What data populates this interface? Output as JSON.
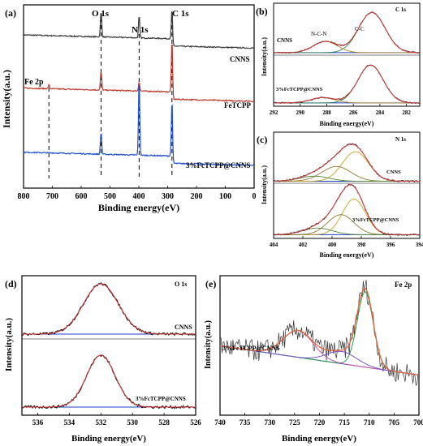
{
  "chart_data": [
    {
      "panel": "(a)",
      "type": "line",
      "xlabel": "Binding energy(eV)",
      "ylabel": "Intensity(a.u.)",
      "xlim": [
        800,
        0
      ],
      "xticks": [
        800,
        700,
        600,
        500,
        400,
        300,
        200,
        100,
        0
      ],
      "peaks": [
        {
          "label": "Fe 2p",
          "x": 712
        },
        {
          "label": "O 1s",
          "x": 531
        },
        {
          "label": "N 1s",
          "x": 399
        },
        {
          "label": "C 1s",
          "x": 285
        }
      ],
      "series": [
        {
          "name": "CNNS",
          "color": "#3a3a3a",
          "base": 0.82,
          "peaks": [
            {
              "x": 531,
              "h": 0.14
            },
            {
              "x": 399,
              "h": 0.12
            },
            {
              "x": 285,
              "h": 0.16
            }
          ]
        },
        {
          "name": "FeTCPP",
          "color": "#c0392b",
          "base": 0.53,
          "peaks": [
            {
              "x": 712,
              "h": 0.02
            },
            {
              "x": 531,
              "h": 0.1
            },
            {
              "x": 399,
              "h": 0.05
            },
            {
              "x": 285,
              "h": 0.28
            }
          ]
        },
        {
          "name": "3%FcTCPP@CNNS",
          "color": "#1f4fd1",
          "base": 0.18,
          "peaks": [
            {
              "x": 531,
              "h": 0.12
            },
            {
              "x": 399,
              "h": 0.42
            },
            {
              "x": 285,
              "h": 0.3
            }
          ]
        }
      ]
    },
    {
      "panel": "(b)",
      "type": "line",
      "title": "C 1s",
      "xlabel": "Binding energy(eV)",
      "ylabel": "Intensity(a.u.)",
      "xlim": [
        292,
        281
      ],
      "xticks": [
        292,
        290,
        288,
        286,
        284,
        282
      ],
      "annotations": [
        "N-C-N",
        "C-C"
      ],
      "series": [
        {
          "name": "CNNS",
          "peaks": [
            {
              "x": 284.6,
              "h": 0.9,
              "w": 1.0
            },
            {
              "x": 288.1,
              "h": 0.25,
              "w": 0.9
            }
          ]
        },
        {
          "name": "3%FcTCPP@CNNS",
          "peaks": [
            {
              "x": 284.7,
              "h": 0.85,
              "w": 0.95
            },
            {
              "x": 288.3,
              "h": 0.12,
              "w": 0.9
            }
          ]
        }
      ]
    },
    {
      "panel": "(c)",
      "type": "line",
      "title": "N 1s",
      "xlabel": "Binding energy(eV)",
      "ylabel": "Intensity(a.u.)",
      "xlim": [
        404,
        394
      ],
      "xticks": [
        404,
        402,
        400,
        398,
        396,
        394
      ],
      "series": [
        {
          "name": "CNNS",
          "peaks": [
            {
              "x": 398.4,
              "h": 0.7,
              "w": 0.9
            },
            {
              "x": 399.7,
              "h": 0.35,
              "w": 1.0
            },
            {
              "x": 401.2,
              "h": 0.12,
              "w": 1.0
            }
          ]
        },
        {
          "name": "3%FcTCPP@CNNS",
          "peaks": [
            {
              "x": 398.5,
              "h": 0.8,
              "w": 0.8
            },
            {
              "x": 399.4,
              "h": 0.45,
              "w": 0.9
            },
            {
              "x": 401.0,
              "h": 0.15,
              "w": 1.0
            }
          ]
        }
      ]
    },
    {
      "panel": "(d)",
      "type": "line",
      "title": "O 1s",
      "xlabel": "Binding energy(eV)",
      "ylabel": "Intensity(a.u.)",
      "xlim": [
        537,
        526
      ],
      "xticks": [
        536,
        534,
        532,
        530,
        528,
        526
      ],
      "series": [
        {
          "name": "CNNS",
          "peaks": [
            {
              "x": 532.0,
              "h": 1.0,
              "w": 1.1
            }
          ]
        },
        {
          "name": "3%FcTCPP@CNNS",
          "peaks": [
            {
              "x": 532.0,
              "h": 1.0,
              "w": 0.9
            }
          ]
        }
      ]
    },
    {
      "panel": "(e)",
      "type": "line",
      "title": "Fe 2p",
      "xlabel": "Binding energy(eV)",
      "ylabel": "Intensity(a.u.)",
      "xlim": [
        740,
        700
      ],
      "xticks": [
        740,
        735,
        730,
        725,
        720,
        715,
        710,
        705,
        700
      ],
      "series": [
        {
          "name": "3%FcTCPP@CNNS",
          "peaks": [
            {
              "x": 710.8,
              "h": 0.62,
              "w": 1.6
            },
            {
              "x": 724.3,
              "h": 0.22,
              "w": 3.0
            },
            {
              "x": 715.5,
              "h": 0.1,
              "w": 3.0
            }
          ]
        }
      ]
    }
  ]
}
